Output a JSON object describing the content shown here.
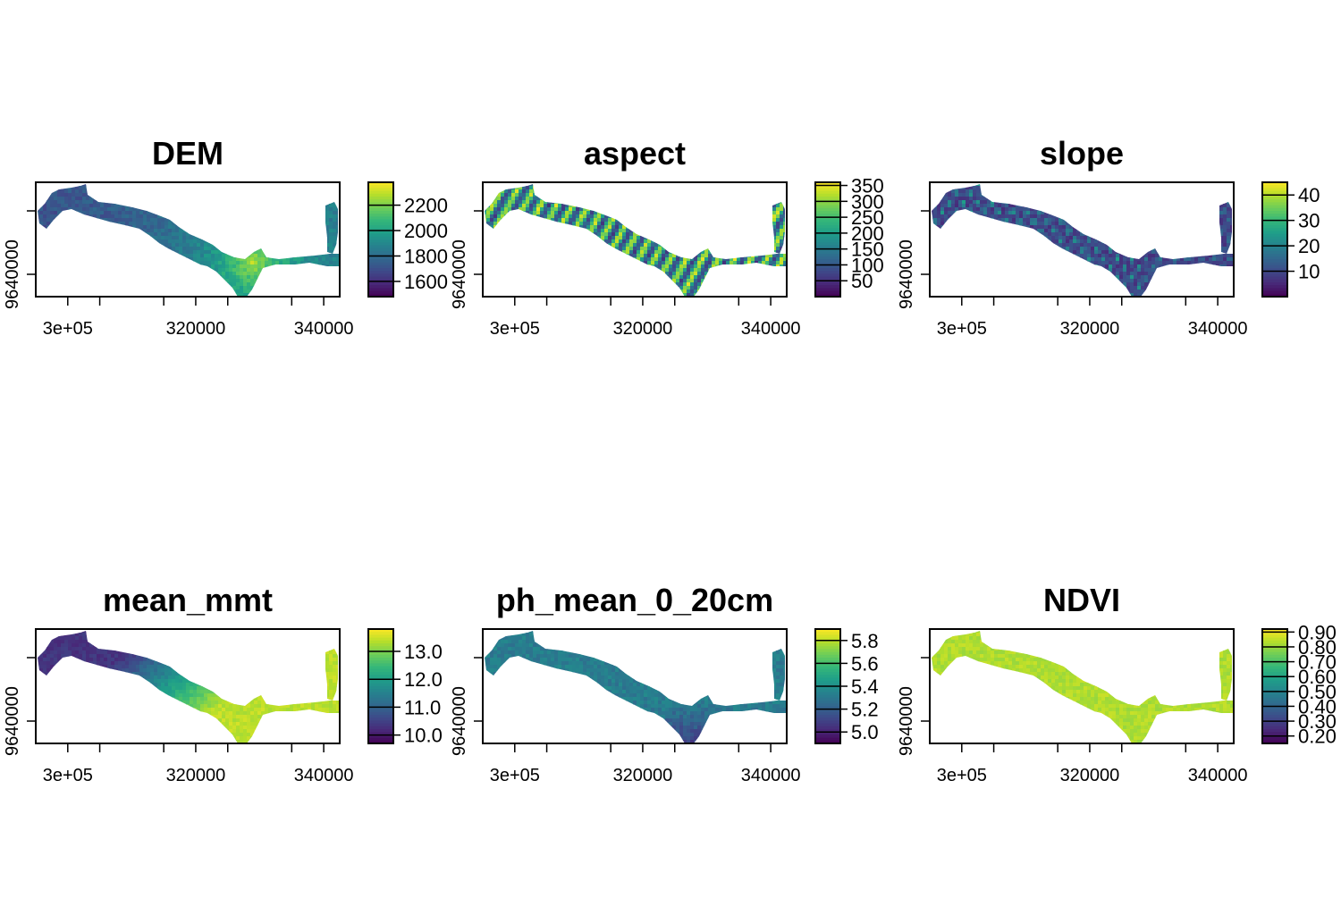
{
  "colormap_viridis": [
    "#440154",
    "#482878",
    "#3e4a89",
    "#31688e",
    "#26828e",
    "#1f9e89",
    "#35b779",
    "#6ece58",
    "#b5de2b",
    "#fde725"
  ],
  "na_color": "#ffffff",
  "chart_data": [
    {
      "type": "heatmap",
      "title": "DEM",
      "x_ticks": [
        "3e+05",
        "320000",
        "340000"
      ],
      "x_tick_values": [
        300000,
        320000,
        340000
      ],
      "y_ticks": [
        "9640000"
      ],
      "legend_ticks": [
        "1600",
        "1800",
        "2000",
        "2200"
      ],
      "legend_values": [
        1600,
        1800,
        2000,
        2200
      ],
      "value_range": [
        1480,
        2380
      ],
      "colorscale": "viridis"
    },
    {
      "type": "heatmap",
      "title": "aspect",
      "x_ticks": [
        "3e+05",
        "320000",
        "340000"
      ],
      "x_tick_values": [
        300000,
        320000,
        340000
      ],
      "y_ticks": [
        "9640000"
      ],
      "legend_ticks": [
        "50",
        "100",
        "150",
        "200",
        "250",
        "300",
        "350"
      ],
      "legend_values": [
        50,
        100,
        150,
        200,
        250,
        300,
        350
      ],
      "value_range": [
        0,
        360
      ],
      "colorscale": "viridis"
    },
    {
      "type": "heatmap",
      "title": "slope",
      "x_ticks": [
        "3e+05",
        "320000",
        "340000"
      ],
      "x_tick_values": [
        300000,
        320000,
        340000
      ],
      "y_ticks": [
        "9640000"
      ],
      "legend_ticks": [
        "10",
        "20",
        "30",
        "40"
      ],
      "legend_values": [
        10,
        20,
        30,
        40
      ],
      "value_range": [
        0,
        45
      ],
      "colorscale": "viridis"
    },
    {
      "type": "heatmap",
      "title": "mean_mmt",
      "x_ticks": [
        "3e+05",
        "320000",
        "340000"
      ],
      "x_tick_values": [
        300000,
        320000,
        340000
      ],
      "y_ticks": [
        "9640000"
      ],
      "legend_ticks": [
        "10.0",
        "11.0",
        "12.0",
        "13.0"
      ],
      "legend_values": [
        10.0,
        11.0,
        12.0,
        13.0
      ],
      "value_range": [
        9.7,
        13.8
      ],
      "colorscale": "viridis"
    },
    {
      "type": "heatmap",
      "title": "ph_mean_0_20cm",
      "x_ticks": [
        "3e+05",
        "320000",
        "340000"
      ],
      "x_tick_values": [
        300000,
        320000,
        340000
      ],
      "y_ticks": [
        "9640000"
      ],
      "legend_ticks": [
        "5.0",
        "5.2",
        "5.4",
        "5.6",
        "5.8"
      ],
      "legend_values": [
        5.0,
        5.2,
        5.4,
        5.6,
        5.8
      ],
      "value_range": [
        4.9,
        5.9
      ],
      "colorscale": "viridis"
    },
    {
      "type": "heatmap",
      "title": "NDVI",
      "x_ticks": [
        "3e+05",
        "320000",
        "340000"
      ],
      "x_tick_values": [
        300000,
        320000,
        340000
      ],
      "y_ticks": [
        "9640000"
      ],
      "legend_ticks": [
        "0.20",
        "0.30",
        "0.40",
        "0.50",
        "0.60",
        "0.70",
        "0.80",
        "0.90"
      ],
      "legend_values": [
        0.2,
        0.3,
        0.4,
        0.5,
        0.6,
        0.7,
        0.8,
        0.9
      ],
      "value_range": [
        0.15,
        0.92
      ],
      "colorscale": "viridis"
    }
  ]
}
